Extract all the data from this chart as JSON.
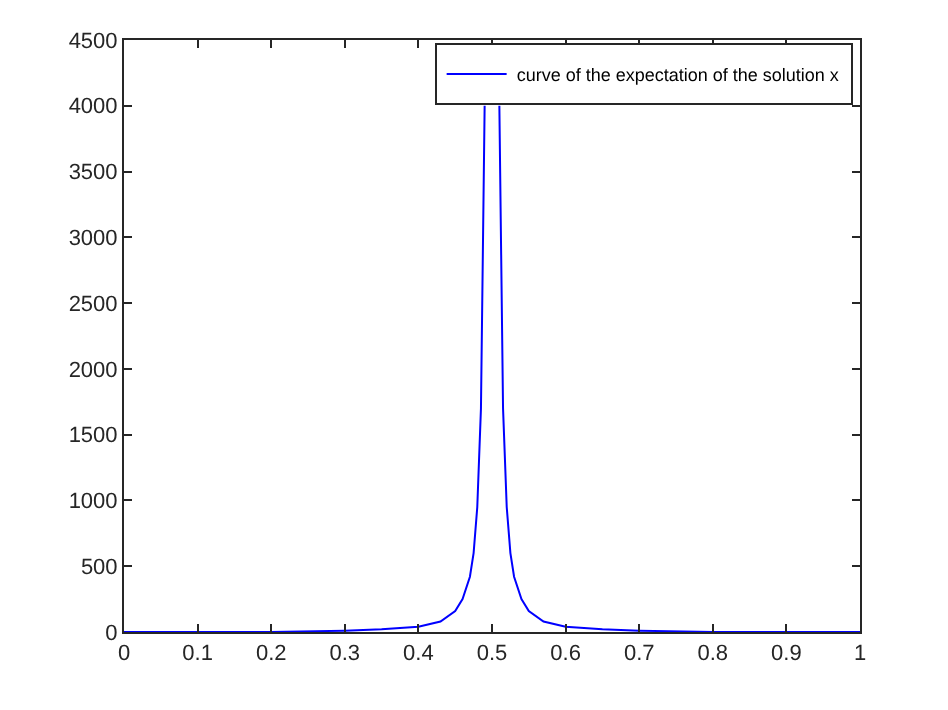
{
  "chart_data": {
    "type": "line",
    "x": [
      0,
      0.1,
      0.2,
      0.3,
      0.35,
      0.4,
      0.43,
      0.45,
      0.46,
      0.47,
      0.475,
      0.48,
      0.485,
      0.49,
      0.5,
      0.51,
      0.515,
      0.52,
      0.525,
      0.53,
      0.54,
      0.55,
      0.57,
      0.6,
      0.65,
      0.7,
      0.8,
      0.9,
      1
    ],
    "series": [
      {
        "name": "curve of the expectation of the solution x",
        "color": "#0000ff",
        "values": [
          0,
          0,
          0,
          10,
          20,
          40,
          80,
          160,
          250,
          420,
          600,
          950,
          1700,
          4000,
          null,
          4000,
          1700,
          950,
          600,
          420,
          250,
          160,
          80,
          40,
          20,
          10,
          0,
          0,
          0
        ]
      }
    ],
    "xlim": [
      0,
      1
    ],
    "xticks": [
      0,
      0.1,
      0.2,
      0.3,
      0.4,
      0.5,
      0.6,
      0.7,
      0.8,
      0.9,
      1
    ],
    "ylim": [
      0,
      4500
    ],
    "yticks": [
      0,
      500,
      1000,
      1500,
      2000,
      2500,
      3000,
      3500,
      4000,
      4500
    ],
    "grid": false,
    "legend": "top right",
    "marker": "none",
    "line_style": "solid"
  }
}
